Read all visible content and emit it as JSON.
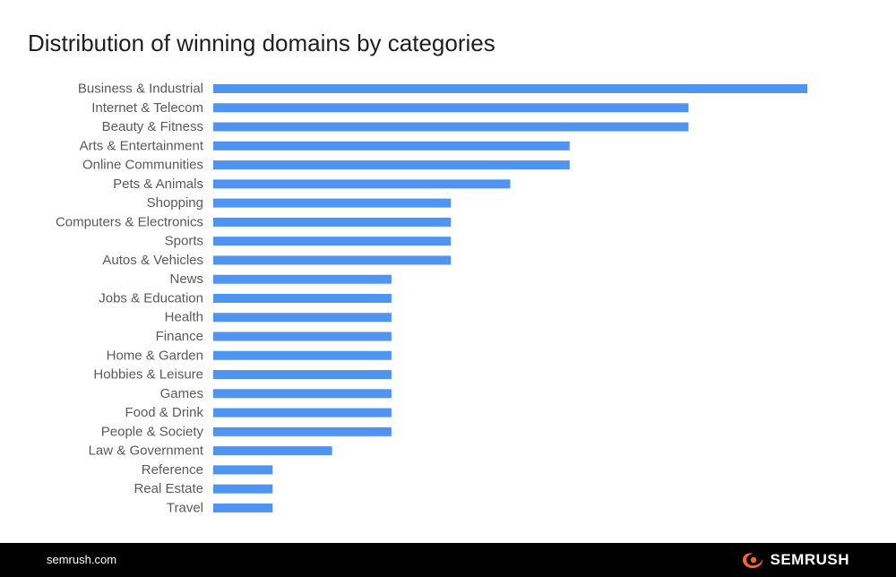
{
  "colors": {
    "bar": "#4f94f0",
    "label": "#5a5a5a",
    "title": "#1f1f1f",
    "footer_bg": "#000000",
    "footer_text": "#ffffff",
    "brand_accent": "#ff642d"
  },
  "footer": {
    "url": "semrush.com",
    "brand": "SEMRUSH",
    "brand_icon": "semrush-flame-icon"
  },
  "chart_data": {
    "type": "bar",
    "orientation": "horizontal",
    "title": "Distribution of winning domains by categories",
    "xlabel": "",
    "ylabel": "",
    "grid": false,
    "xlim": [
      0,
      10
    ],
    "categories": [
      "Business & Industrial",
      "Internet & Telecom",
      "Beauty & Fitness",
      "Arts & Entertainment",
      "Online Communities",
      "Pets & Animals",
      "Shopping",
      "Computers & Electronics",
      "Sports",
      "Autos & Vehicles",
      "News",
      "Jobs & Education",
      "Health",
      "Finance",
      "Home & Garden",
      "Hobbies & Leisure",
      "Games",
      "Food & Drink",
      "People & Society",
      "Law & Government",
      "Reference",
      "Real Estate",
      "Travel"
    ],
    "values": [
      10,
      8,
      8,
      6,
      6,
      5,
      4,
      4,
      4,
      4,
      3,
      3,
      3,
      3,
      3,
      3,
      3,
      3,
      3,
      2,
      1,
      1,
      1
    ]
  }
}
